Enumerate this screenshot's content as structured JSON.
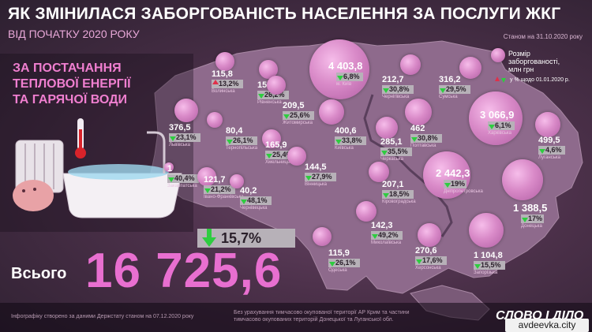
{
  "title": "ЯК ЗМІНИЛАСЯ ЗАБОРГОВАНІСТЬ НАСЕЛЕННЯ ЗА ПОСЛУГИ ЖКГ",
  "subtitle": "ВІД ПОЧАТКУ 2020 РОКУ",
  "as_of": "Станом на 31.10.2020 року",
  "category": [
    "ЗА ПОСТАЧАННЯ",
    "ТЕПЛОВОЇ ЕНЕРГІЇ",
    "ТА ГАРЯЧОЇ ВОДИ"
  ],
  "legend": {
    "size_label": [
      "Розмір",
      "заборгованості,",
      "млн грн"
    ],
    "change_label": "у % щодо 01.01.2020 р."
  },
  "total": {
    "label": "Всього",
    "value": "16 725,6",
    "change": "15,7%",
    "direction": "down"
  },
  "footer": {
    "credit": "Інфографіку створено за даними Держстату станом на 07.12.2020 року",
    "note": [
      "Без урахування тимчасово окупованої території АР Крим та частини",
      "тимчасово окупованих територій Донецької та Луганської обл."
    ]
  },
  "watermark": "avdeevka.city",
  "logo": "СЛОВО І ДІЛО",
  "colors": {
    "accent": "#e86fd0",
    "up": "#e0304a",
    "down": "#2ecc40",
    "badge": "#b7b1b8"
  },
  "chart_data": {
    "type": "bubble-map",
    "unit": "млн грн",
    "regions": [
      {
        "name": "Волинська",
        "value": 115.8,
        "value_text": "115,8",
        "change": "13,2%",
        "direction": "up"
      },
      {
        "name": "Рівненська",
        "value": 151.9,
        "value_text": "151,9",
        "change": "26,2%",
        "direction": "down"
      },
      {
        "name": "м. Київ",
        "value": 4403.8,
        "value_text": "4 403,8",
        "change": "6,8%",
        "direction": "down"
      },
      {
        "name": "Чернігівська",
        "value": 212.7,
        "value_text": "212,7",
        "change": "30,8%",
        "direction": "down"
      },
      {
        "name": "Сумська",
        "value": 316.2,
        "value_text": "316,2",
        "change": "29,5%",
        "direction": "down"
      },
      {
        "name": "Житомирська",
        "value": 209.5,
        "value_text": "209,5",
        "change": "25,6%",
        "direction": "down"
      },
      {
        "name": "Львівська",
        "value": 376.5,
        "value_text": "376,5",
        "change": "23,1%",
        "direction": "down"
      },
      {
        "name": "Тернопільська",
        "value": 80.4,
        "value_text": "80,4",
        "change": "26,1%",
        "direction": "down"
      },
      {
        "name": "Хмельницька",
        "value": 165.9,
        "value_text": "165,9",
        "change": "25,4%",
        "direction": "down"
      },
      {
        "name": "Київська",
        "value": 400.6,
        "value_text": "400,6",
        "change": "33,8%",
        "direction": "down"
      },
      {
        "name": "Черкаська",
        "value": 285.1,
        "value_text": "285,1",
        "change": "35,5%",
        "direction": "down"
      },
      {
        "name": "Полтавська",
        "value": 462,
        "value_text": "462",
        "change": "30,8%",
        "direction": "down"
      },
      {
        "name": "Харківська",
        "value": 3066.9,
        "value_text": "3 066,9",
        "change": "6,1%",
        "direction": "down"
      },
      {
        "name": "Луганська",
        "value": 499.5,
        "value_text": "499,5",
        "change": "4,6%",
        "direction": "down"
      },
      {
        "name": "Закарпатська",
        "value": 1,
        "value_text": "1",
        "change": "40,4%",
        "direction": "down"
      },
      {
        "name": "Івано-Франківська",
        "value": 121.7,
        "value_text": "121,7",
        "change": "21,2%",
        "direction": "down"
      },
      {
        "name": "Чернівецька",
        "value": 40.2,
        "value_text": "40,2",
        "change": "48,1%",
        "direction": "down"
      },
      {
        "name": "Вінницька",
        "value": 144.5,
        "value_text": "144,5",
        "change": "27,9%",
        "direction": "down"
      },
      {
        "name": "Кіровоградська",
        "value": 207.1,
        "value_text": "207,1",
        "change": "18,5%",
        "direction": "down"
      },
      {
        "name": "Дніпропетровська",
        "value": 2442.3,
        "value_text": "2 442,3",
        "change": "19%",
        "direction": "down"
      },
      {
        "name": "Донецька",
        "value": 1388.5,
        "value_text": "1 388,5",
        "change": "17%",
        "direction": "down"
      },
      {
        "name": "Миколаївська",
        "value": 142.3,
        "value_text": "142,3",
        "change": "49,2%",
        "direction": "down"
      },
      {
        "name": "Одеська",
        "value": 115.9,
        "value_text": "115,9",
        "change": "26,1%",
        "direction": "down"
      },
      {
        "name": "Херсонська",
        "value": 270.6,
        "value_text": "270,6",
        "change": "17,6%",
        "direction": "down"
      },
      {
        "name": "Запорізька",
        "value": 1104.8,
        "value_text": "1 104,8",
        "change": "15,5%",
        "direction": "down"
      }
    ]
  }
}
